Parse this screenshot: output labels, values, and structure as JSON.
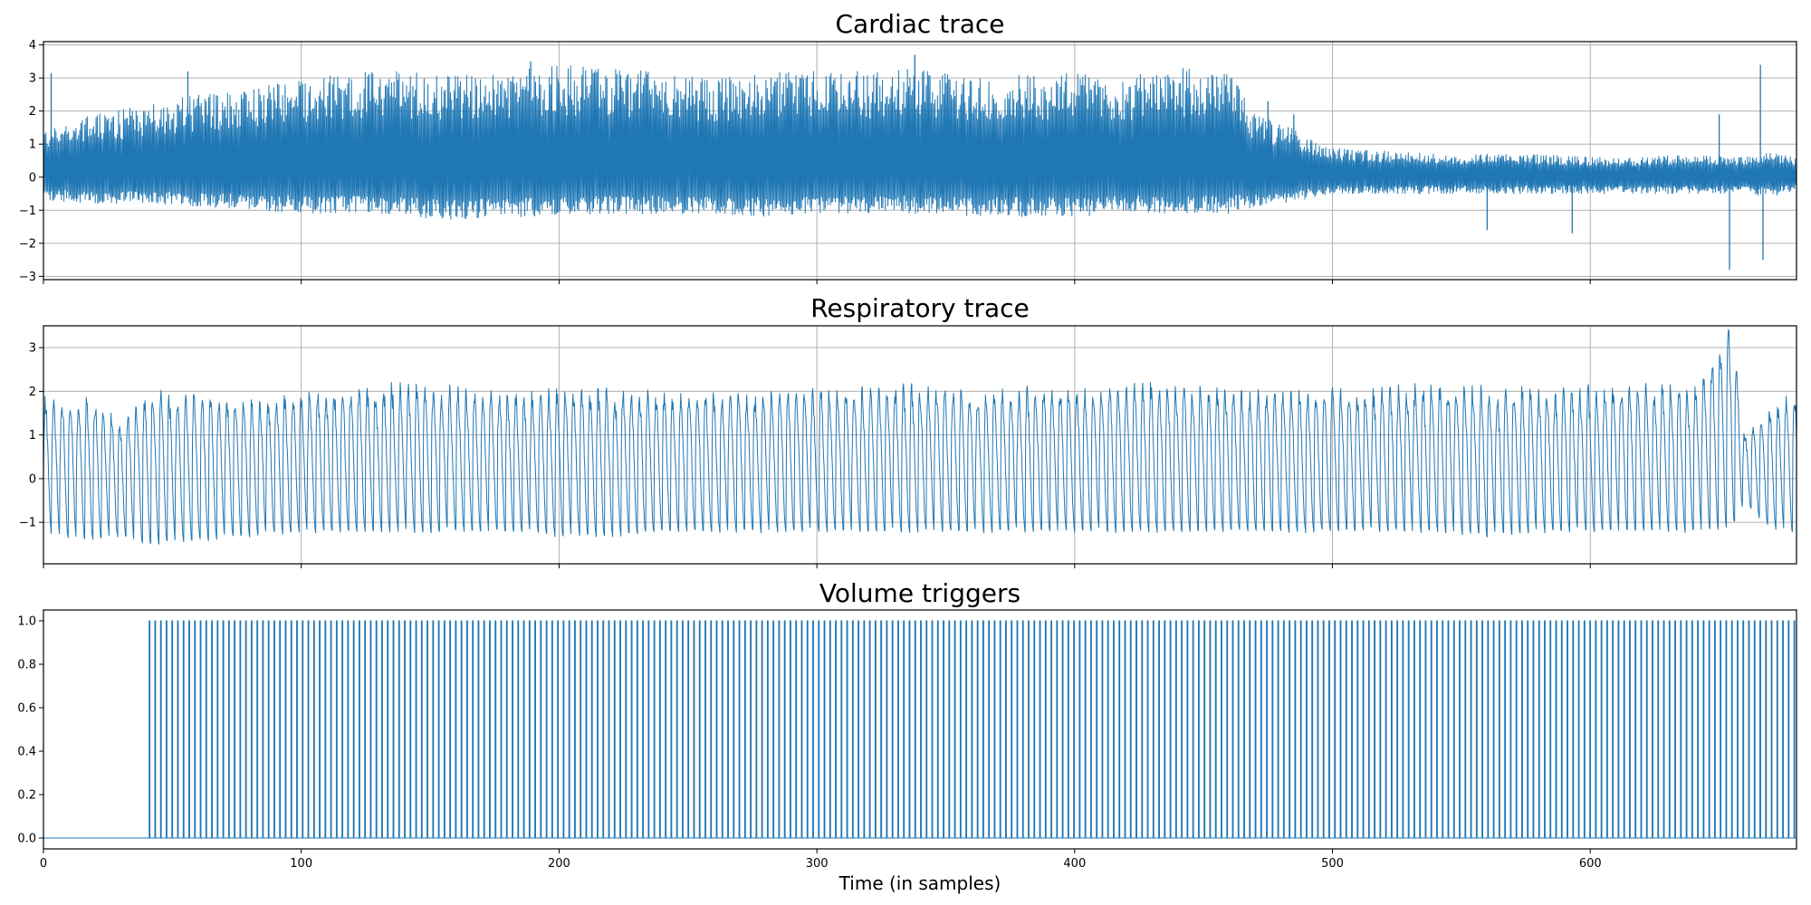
{
  "colors": {
    "series": "#1f77b4",
    "grid": "#b0b0b0"
  },
  "chart_data": [
    {
      "type": "line",
      "title": "Cardiac trace",
      "xlabel": "",
      "ylabel": "",
      "xlim": [
        0,
        680
      ],
      "ylim": [
        -3.1,
        4.1
      ],
      "xticks": [
        0,
        100,
        200,
        300,
        400,
        500,
        600
      ],
      "yticks": [
        -3,
        -2,
        -1,
        0,
        1,
        2,
        3,
        4
      ],
      "ytick_labels": [
        "−3",
        "−2",
        "−1",
        "0",
        "1",
        "2",
        "3",
        "4"
      ],
      "x_tick_labels_visible": false,
      "grid": true,
      "series": [
        {
          "envelope_x": [
            0,
            20,
            40,
            60,
            80,
            100,
            120,
            140,
            160,
            180,
            200,
            220,
            240,
            260,
            280,
            300,
            320,
            340,
            360,
            380,
            400,
            420,
            440,
            460,
            470,
            480,
            490,
            500,
            520,
            540,
            560,
            580,
            600,
            620,
            640,
            660,
            670,
            680
          ],
          "envelope_max": [
            1.5,
            1.9,
            2.2,
            2.5,
            2.7,
            3.0,
            3.2,
            3.2,
            3.1,
            3.2,
            3.4,
            3.3,
            3.2,
            3.0,
            3.2,
            3.2,
            3.2,
            3.3,
            3.0,
            3.1,
            3.2,
            3.1,
            3.3,
            3.2,
            1.9,
            1.6,
            1.3,
            0.9,
            0.8,
            0.7,
            0.7,
            0.7,
            0.6,
            0.6,
            0.7,
            0.6,
            0.8,
            0.6
          ],
          "envelope_min": [
            -0.7,
            -0.8,
            -0.8,
            -0.9,
            -1.0,
            -1.1,
            -1.1,
            -1.2,
            -1.3,
            -1.2,
            -1.2,
            -1.1,
            -1.1,
            -1.1,
            -1.2,
            -1.1,
            -1.1,
            -1.1,
            -1.2,
            -1.2,
            -1.2,
            -1.1,
            -1.1,
            -1.1,
            -0.9,
            -0.8,
            -0.7,
            -0.5,
            -0.5,
            -0.5,
            -0.5,
            -0.5,
            -0.5,
            -0.5,
            -0.5,
            -0.5,
            -0.6,
            -0.4
          ],
          "spikes": [
            {
              "x": 3,
              "y": 3.15
            },
            {
              "x": 56,
              "y": 3.2
            },
            {
              "x": 189,
              "y": 3.5
            },
            {
              "x": 338,
              "y": 3.7
            },
            {
              "x": 475,
              "y": 2.3
            },
            {
              "x": 485,
              "y": 1.9
            },
            {
              "x": 560,
              "y": -1.6
            },
            {
              "x": 593,
              "y": -1.7
            },
            {
              "x": 650,
              "y": 1.9
            },
            {
              "x": 654,
              "y": -2.8
            },
            {
              "x": 666,
              "y": 3.4
            },
            {
              "x": 667,
              "y": -2.5
            }
          ]
        }
      ]
    },
    {
      "type": "line",
      "title": "Respiratory trace",
      "xlabel": "",
      "ylabel": "",
      "xlim": [
        0,
        680
      ],
      "ylim": [
        -1.95,
        3.5
      ],
      "xticks": [
        0,
        100,
        200,
        300,
        400,
        500,
        600
      ],
      "yticks": [
        -1,
        0,
        1,
        2,
        3
      ],
      "ytick_labels": [
        "−1",
        "0",
        "1",
        "2",
        "3"
      ],
      "x_tick_labels_visible": false,
      "grid": true,
      "series": [
        {
          "cycle_period": 3.2,
          "envelope_x": [
            0,
            20,
            30,
            40,
            60,
            80,
            100,
            120,
            140,
            160,
            180,
            200,
            220,
            240,
            260,
            280,
            300,
            320,
            340,
            360,
            380,
            400,
            420,
            440,
            460,
            480,
            500,
            520,
            540,
            560,
            580,
            600,
            620,
            640,
            655,
            660,
            670,
            680
          ],
          "envelope_max": [
            1.7,
            1.7,
            1.2,
            1.8,
            1.7,
            1.7,
            1.8,
            1.9,
            2.0,
            1.9,
            1.8,
            1.9,
            1.9,
            1.8,
            1.8,
            1.8,
            1.9,
            1.9,
            2.0,
            1.8,
            1.9,
            1.9,
            2.0,
            2.0,
            1.9,
            1.8,
            1.9,
            1.9,
            2.0,
            1.9,
            1.9,
            1.9,
            2.0,
            1.9,
            3.3,
            1.0,
            1.5,
            1.9
          ],
          "envelope_min": [
            -1.3,
            -1.4,
            -1.3,
            -1.5,
            -1.4,
            -1.3,
            -1.2,
            -1.2,
            -1.2,
            -1.2,
            -1.2,
            -1.3,
            -1.3,
            -1.2,
            -1.2,
            -1.2,
            -1.2,
            -1.2,
            -1.2,
            -1.2,
            -1.2,
            -1.2,
            -1.2,
            -1.2,
            -1.2,
            -1.2,
            -1.2,
            -1.2,
            -1.2,
            -1.3,
            -1.2,
            -1.2,
            -1.2,
            -1.2,
            -1.1,
            -0.6,
            -1.1,
            -1.2
          ]
        }
      ]
    },
    {
      "type": "line",
      "title": "Volume triggers",
      "xlabel": "Time (in samples)",
      "ylabel": "",
      "xlim": [
        0,
        680
      ],
      "ylim": [
        -0.05,
        1.05
      ],
      "xticks": [
        0,
        100,
        200,
        300,
        400,
        500,
        600
      ],
      "yticks": [
        0.0,
        0.2,
        0.4,
        0.6,
        0.8,
        1.0
      ],
      "ytick_labels": [
        "0.0",
        "0.2",
        "0.4",
        "0.6",
        "0.8",
        "1.0"
      ],
      "x_tick_labels_visible": true,
      "grid": false,
      "series": [
        {
          "baseline": 0,
          "pulse_height": 1,
          "first_trigger": 41,
          "trigger_interval": 2.2
        }
      ]
    }
  ]
}
